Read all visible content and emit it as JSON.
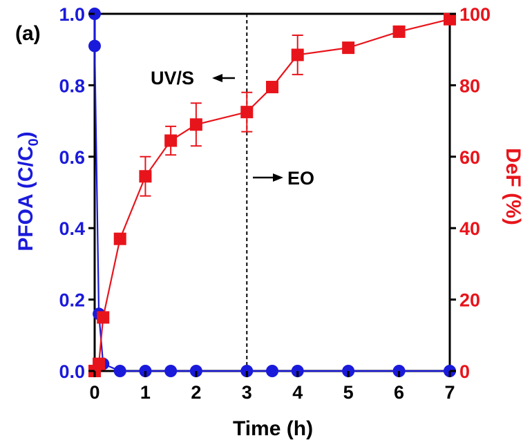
{
  "chart_data": {
    "type": "line",
    "panel_label": "(a)",
    "xlabel": "Time (h)",
    "xlim": [
      0,
      7
    ],
    "xticks": [
      0,
      1,
      2,
      3,
      4,
      5,
      6,
      7
    ],
    "ylabel_left": {
      "main": "PFOA (C/C",
      "sub": "0",
      "end": ")"
    },
    "ylim_left": [
      0,
      1.0
    ],
    "yticks_left": [
      "0.0",
      "0.2",
      "0.4",
      "0.6",
      "0.8",
      "1.0"
    ],
    "ylabel_right": "DeF (%)",
    "ylim_right": [
      0,
      100
    ],
    "yticks_right": [
      "0",
      "20",
      "40",
      "60",
      "80",
      "100"
    ],
    "grid": false,
    "series": [
      {
        "axis": "left",
        "color": "#1a1adb",
        "marker": "circle",
        "x": [
          0,
          0,
          0.083,
          0.167,
          0.5,
          1,
          1.5,
          2,
          3,
          3.5,
          4,
          5,
          6,
          7
        ],
        "y": [
          1.0,
          0.91,
          0.16,
          0.02,
          0.0,
          0.0,
          0.0,
          0.0,
          0.0,
          0.0,
          0.0,
          0.0,
          0.0,
          0.0
        ]
      },
      {
        "axis": "right",
        "color": "#e8141b",
        "marker": "square",
        "x": [
          0,
          0.083,
          0.167,
          0.5,
          1,
          1.5,
          2,
          3,
          3.5,
          4,
          5,
          6,
          7
        ],
        "y": [
          0,
          2,
          15,
          37,
          54.5,
          64.5,
          69,
          72.5,
          79.5,
          88.5,
          90.5,
          95,
          98.5
        ],
        "err": [
          0,
          0,
          0,
          0,
          5.5,
          4,
          6,
          5.5,
          0,
          5.5,
          0,
          1,
          1.5
        ]
      }
    ],
    "annotations": [
      {
        "text": "UV/S",
        "x": 3.0,
        "arrow": "left"
      },
      {
        "text": "EO",
        "x": 3.0,
        "arrow": "right"
      }
    ],
    "divider_x": 3.0
  }
}
